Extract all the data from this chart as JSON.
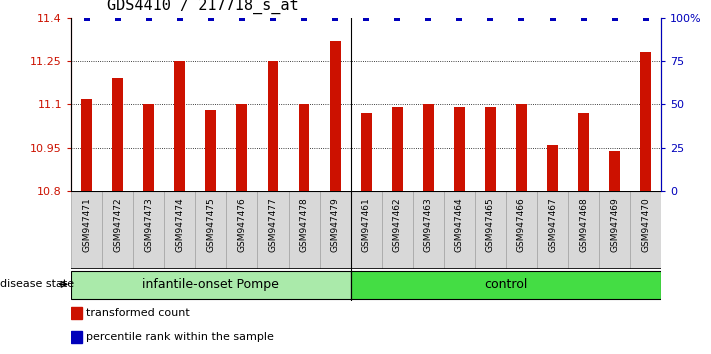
{
  "title": "GDS4410 / 217718_s_at",
  "samples": [
    "GSM947471",
    "GSM947472",
    "GSM947473",
    "GSM947474",
    "GSM947475",
    "GSM947476",
    "GSM947477",
    "GSM947478",
    "GSM947479",
    "GSM947461",
    "GSM947462",
    "GSM947463",
    "GSM947464",
    "GSM947465",
    "GSM947466",
    "GSM947467",
    "GSM947468",
    "GSM947469",
    "GSM947470"
  ],
  "values": [
    11.12,
    11.19,
    11.1,
    11.25,
    11.08,
    11.1,
    11.25,
    11.1,
    11.32,
    11.07,
    11.09,
    11.1,
    11.09,
    11.09,
    11.1,
    10.96,
    11.07,
    10.94,
    11.28
  ],
  "groups": [
    {
      "label": "infantile-onset Pompe",
      "start": 0,
      "end": 9,
      "color": "#aaeaaa"
    },
    {
      "label": "control",
      "start": 9,
      "end": 19,
      "color": "#44dd44"
    }
  ],
  "group_separator": 9,
  "ylim": [
    10.8,
    11.4
  ],
  "yticks": [
    10.8,
    10.95,
    11.1,
    11.25,
    11.4
  ],
  "ytick_labels": [
    "10.8",
    "10.95",
    "11.1",
    "11.25",
    "11.4"
  ],
  "right_yticks": [
    0,
    25,
    50,
    75,
    100
  ],
  "right_ytick_labels": [
    "0",
    "25",
    "50",
    "75",
    "100%"
  ],
  "bar_color": "#cc1100",
  "dot_color": "#0000bb",
  "dot_size": 18,
  "grid_values": [
    10.95,
    11.1,
    11.25
  ],
  "background_color": "#ffffff",
  "tick_label_color_left": "#cc1100",
  "tick_label_color_right": "#0000bb",
  "group_label_fontsize": 9,
  "title_fontsize": 11,
  "legend_items": [
    {
      "color": "#cc1100",
      "label": "transformed count"
    },
    {
      "color": "#0000bb",
      "label": "percentile rank within the sample"
    }
  ],
  "disease_state_label": "disease state",
  "bar_width": 0.35
}
